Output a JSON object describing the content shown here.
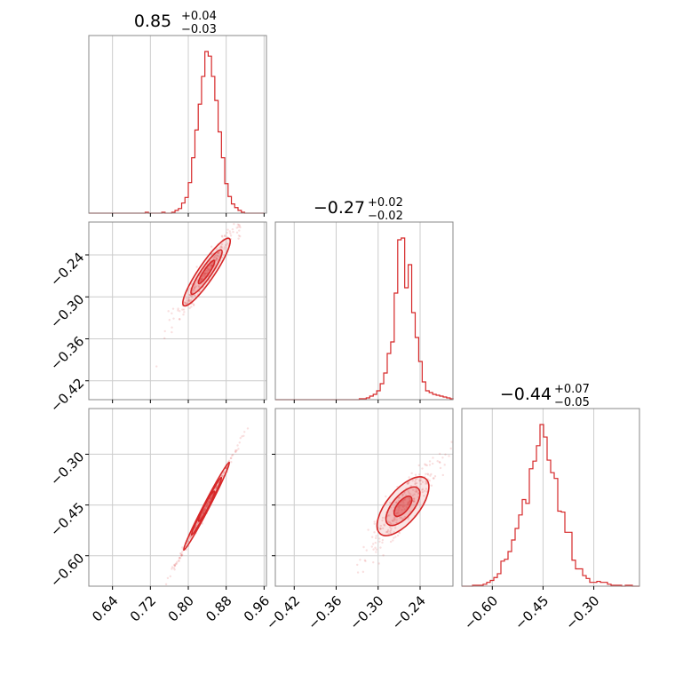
{
  "chart_data": {
    "type": "corner",
    "color": "#d62728",
    "parameters": [
      {
        "title": "0.85",
        "err_plus": "+0.04",
        "err_minus": "−0.03",
        "range": [
          0.59,
          0.965
        ],
        "ticks": [
          0.64,
          0.72,
          0.8,
          0.88,
          0.96
        ],
        "tick_labels": [
          "0.64",
          "0.72",
          "0.80",
          "0.88",
          "0.96"
        ]
      },
      {
        "title": "−0.27",
        "err_plus": "+0.02",
        "err_minus": "−0.02",
        "range": [
          -0.447,
          -0.193
        ],
        "ticks": [
          -0.42,
          -0.36,
          -0.3,
          -0.24
        ],
        "tick_labels": [
          "−0.42",
          "−0.36",
          "−0.30",
          "−0.24"
        ]
      },
      {
        "title": "−0.44",
        "err_plus": "+0.07",
        "err_minus": "−0.05",
        "range": [
          -0.69,
          -0.165
        ],
        "ticks": [
          -0.6,
          -0.45,
          -0.3
        ],
        "tick_labels": [
          "−0.60",
          "−0.45",
          "−0.30"
        ]
      }
    ],
    "histograms": [
      {
        "param": 0,
        "bins": [
          0.59,
          0.597,
          0.604,
          0.611,
          0.618,
          0.625,
          0.632,
          0.639,
          0.646,
          0.653,
          0.66,
          0.667,
          0.674,
          0.681,
          0.688,
          0.695,
          0.702,
          0.709,
          0.716,
          0.723,
          0.73,
          0.737,
          0.744,
          0.751,
          0.758,
          0.765,
          0.772,
          0.779,
          0.786,
          0.793,
          0.8,
          0.807,
          0.814,
          0.821,
          0.828,
          0.835,
          0.842,
          0.849,
          0.856,
          0.863,
          0.87,
          0.877,
          0.884,
          0.891,
          0.898,
          0.905,
          0.912,
          0.919,
          0.926,
          0.933,
          0.94,
          0.947,
          0.954,
          0.961
        ],
        "counts": [
          0,
          0,
          0,
          0,
          0,
          0,
          0,
          0,
          0,
          0,
          0,
          0,
          0,
          0,
          0,
          0,
          0,
          1,
          0,
          0,
          0,
          0,
          1,
          0,
          0,
          1,
          3,
          5,
          11,
          17,
          33,
          60,
          90,
          118,
          148,
          175,
          170,
          148,
          122,
          88,
          60,
          32,
          18,
          10,
          6,
          3,
          1,
          0,
          0,
          0,
          0,
          0,
          0
        ]
      },
      {
        "param": 1,
        "bins": [
          -0.447,
          -0.442,
          -0.437,
          -0.432,
          -0.427,
          -0.422,
          -0.417,
          -0.412,
          -0.407,
          -0.402,
          -0.397,
          -0.392,
          -0.387,
          -0.382,
          -0.377,
          -0.372,
          -0.367,
          -0.362,
          -0.357,
          -0.352,
          -0.347,
          -0.342,
          -0.337,
          -0.332,
          -0.327,
          -0.322,
          -0.317,
          -0.312,
          -0.307,
          -0.302,
          -0.297,
          -0.292,
          -0.287,
          -0.282,
          -0.277,
          -0.272,
          -0.267,
          -0.262,
          -0.257,
          -0.252,
          -0.247,
          -0.242,
          -0.237,
          -0.232,
          -0.227,
          -0.222,
          -0.217,
          -0.212,
          -0.207,
          -0.202,
          -0.197,
          -0.192
        ],
        "counts": [
          0,
          0,
          0,
          0,
          0,
          0,
          0,
          0,
          0,
          0,
          0,
          0,
          0,
          0,
          0,
          0,
          0,
          0,
          0,
          0,
          0,
          0,
          0,
          0,
          1,
          1,
          2,
          4,
          6,
          10,
          18,
          30,
          52,
          65,
          120,
          180,
          182,
          126,
          152,
          98,
          70,
          43,
          20,
          10,
          8,
          6,
          5,
          4,
          3,
          2,
          1
        ]
      },
      {
        "param": 2,
        "bins": [
          -0.69,
          -0.6795,
          -0.669,
          -0.6585,
          -0.648,
          -0.6375,
          -0.627,
          -0.6165,
          -0.606,
          -0.5955,
          -0.585,
          -0.5745,
          -0.564,
          -0.5535,
          -0.543,
          -0.5325,
          -0.522,
          -0.5115,
          -0.501,
          -0.4905,
          -0.48,
          -0.4695,
          -0.459,
          -0.4485,
          -0.438,
          -0.4275,
          -0.417,
          -0.4065,
          -0.396,
          -0.3855,
          -0.375,
          -0.3645,
          -0.354,
          -0.3435,
          -0.333,
          -0.3225,
          -0.312,
          -0.3015,
          -0.291,
          -0.2805,
          -0.27,
          -0.2595,
          -0.249,
          -0.2385,
          -0.228,
          -0.2175,
          -0.207,
          -0.1965,
          -0.186,
          -0.1755,
          -0.165
        ],
        "counts": [
          0,
          0,
          0,
          1,
          1,
          1,
          2,
          4,
          6,
          9,
          13,
          26,
          28,
          36,
          48,
          60,
          74,
          90,
          86,
          122,
          130,
          146,
          168,
          155,
          131,
          118,
          112,
          78,
          77,
          56,
          56,
          27,
          18,
          18,
          11,
          8,
          4,
          4,
          5,
          4,
          4,
          2,
          1,
          1,
          1,
          0,
          1,
          1,
          0,
          0
        ]
      }
    ],
    "pairs": [
      {
        "x_param": 0,
        "y_param": 1,
        "slope": 1.0,
        "ratio": 0.2
      },
      {
        "x_param": 0,
        "y_param": 2,
        "slope": 2.7,
        "ratio": 0.06
      },
      {
        "x_param": 1,
        "y_param": 2,
        "slope": 2.5,
        "ratio": 0.45
      }
    ]
  }
}
